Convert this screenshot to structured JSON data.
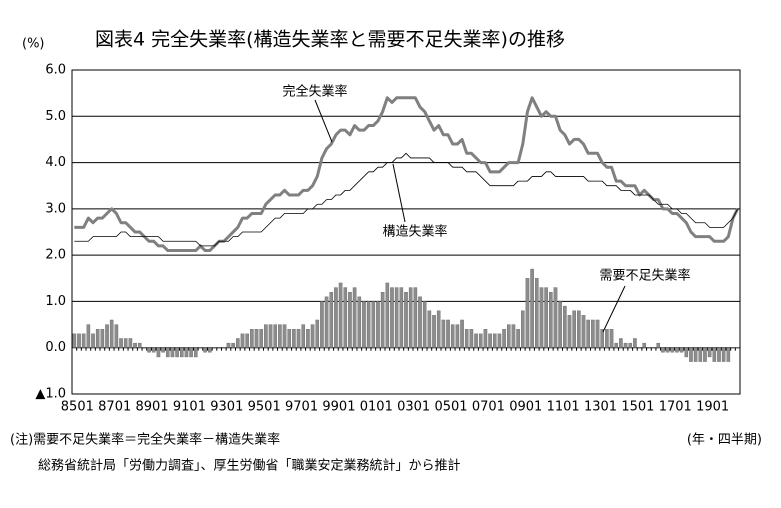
{
  "chart_data": {
    "type": "combo",
    "title": "図表4 完全失業率(構造失業率と需要不足失業率)の推移",
    "y_unit": "(%)",
    "x_unit": "(年・四半期)",
    "notes": [
      "(注)需要不足失業率＝完全失業率－構造失業率",
      "総務省統計局「労働力調査」、厚生労働省「職業安定業務統計」から推計"
    ],
    "ylim": [
      -1,
      6
    ],
    "yticks": [
      {
        "value": 6,
        "label": "6.0"
      },
      {
        "value": 5,
        "label": "5.0"
      },
      {
        "value": 4,
        "label": "4.0"
      },
      {
        "value": 3,
        "label": "3.0"
      },
      {
        "value": 2,
        "label": "2.0"
      },
      {
        "value": 1,
        "label": "1.0"
      },
      {
        "value": 0,
        "label": "0.0"
      },
      {
        "value": -1,
        "label": "▲1.0"
      }
    ],
    "grid": true,
    "categories": [
      "8501",
      null,
      null,
      null,
      null,
      null,
      null,
      null,
      "8701",
      null,
      null,
      null,
      null,
      null,
      null,
      null,
      "8901",
      null,
      null,
      null,
      null,
      null,
      null,
      null,
      "9101",
      null,
      null,
      null,
      null,
      null,
      null,
      null,
      "9301",
      null,
      null,
      null,
      null,
      null,
      null,
      null,
      "9501",
      null,
      null,
      null,
      null,
      null,
      null,
      null,
      "9701",
      null,
      null,
      null,
      null,
      null,
      null,
      null,
      "9901",
      null,
      null,
      null,
      null,
      null,
      null,
      null,
      "0101",
      null,
      null,
      null,
      null,
      null,
      null,
      null,
      "0301",
      null,
      null,
      null,
      null,
      null,
      null,
      null,
      "0501",
      null,
      null,
      null,
      null,
      null,
      null,
      null,
      "0701",
      null,
      null,
      null,
      null,
      null,
      null,
      null,
      "0901",
      null,
      null,
      null,
      null,
      null,
      null,
      null,
      "1101",
      null,
      null,
      null,
      null,
      null,
      null,
      null,
      "1301",
      null,
      null,
      null,
      null,
      null,
      null,
      null,
      "1501",
      null,
      null,
      null,
      null,
      null,
      null,
      null,
      "1701",
      null,
      null,
      null,
      null,
      null,
      null,
      null,
      "1901",
      null,
      null,
      null,
      null,
      null,
      null
    ],
    "series": [
      {
        "name": "完全失業率",
        "type": "line",
        "color": "#808080",
        "values": [
          2.6,
          2.6,
          2.6,
          2.8,
          2.7,
          2.8,
          2.8,
          2.9,
          3.0,
          2.9,
          2.7,
          2.7,
          2.6,
          2.5,
          2.5,
          2.4,
          2.3,
          2.3,
          2.2,
          2.2,
          2.1,
          2.1,
          2.1,
          2.1,
          2.1,
          2.1,
          2.1,
          2.2,
          2.1,
          2.1,
          2.2,
          2.3,
          2.3,
          2.4,
          2.5,
          2.6,
          2.8,
          2.8,
          2.9,
          2.9,
          2.9,
          3.1,
          3.2,
          3.3,
          3.3,
          3.4,
          3.3,
          3.3,
          3.3,
          3.4,
          3.4,
          3.5,
          3.7,
          4.1,
          4.3,
          4.4,
          4.6,
          4.7,
          4.7,
          4.6,
          4.8,
          4.7,
          4.7,
          4.8,
          4.8,
          4.9,
          5.1,
          5.4,
          5.3,
          5.4,
          5.4,
          5.4,
          5.4,
          5.4,
          5.2,
          5.1,
          4.9,
          4.7,
          4.8,
          4.6,
          4.6,
          4.4,
          4.4,
          4.5,
          4.2,
          4.2,
          4.1,
          4.0,
          4.0,
          3.8,
          3.8,
          3.8,
          3.9,
          4.0,
          4.0,
          4.0,
          4.4,
          5.1,
          5.4,
          5.2,
          5.0,
          5.1,
          5.0,
          5.0,
          4.7,
          4.6,
          4.4,
          4.5,
          4.5,
          4.4,
          4.2,
          4.2,
          4.2,
          4.0,
          3.9,
          3.9,
          3.6,
          3.6,
          3.5,
          3.5,
          3.5,
          3.3,
          3.4,
          3.3,
          3.2,
          3.2,
          3.0,
          3.0,
          2.9,
          2.9,
          2.8,
          2.7,
          2.5,
          2.4,
          2.4,
          2.4,
          2.4,
          2.3,
          2.3,
          2.3,
          2.4,
          2.8,
          3.0
        ]
      },
      {
        "name": "構造失業率",
        "type": "line",
        "color": "#000000",
        "values": [
          2.3,
          2.3,
          2.3,
          2.3,
          2.4,
          2.4,
          2.4,
          2.4,
          2.4,
          2.4,
          2.5,
          2.5,
          2.4,
          2.4,
          2.4,
          2.4,
          2.4,
          2.4,
          2.4,
          2.3,
          2.3,
          2.3,
          2.3,
          2.3,
          2.3,
          2.3,
          2.3,
          2.2,
          2.2,
          2.2,
          2.2,
          2.3,
          2.3,
          2.3,
          2.4,
          2.4,
          2.5,
          2.5,
          2.5,
          2.5,
          2.5,
          2.6,
          2.7,
          2.8,
          2.8,
          2.9,
          2.9,
          2.9,
          2.9,
          2.9,
          3.0,
          3.0,
          3.1,
          3.1,
          3.2,
          3.2,
          3.3,
          3.3,
          3.4,
          3.4,
          3.5,
          3.6,
          3.7,
          3.8,
          3.8,
          3.9,
          3.9,
          4.0,
          4.0,
          4.1,
          4.1,
          4.2,
          4.1,
          4.1,
          4.1,
          4.1,
          4.1,
          4.0,
          4.0,
          4.0,
          4.0,
          3.9,
          3.9,
          3.9,
          3.8,
          3.8,
          3.8,
          3.7,
          3.6,
          3.5,
          3.5,
          3.5,
          3.5,
          3.5,
          3.5,
          3.6,
          3.6,
          3.6,
          3.7,
          3.7,
          3.7,
          3.8,
          3.8,
          3.7,
          3.7,
          3.7,
          3.7,
          3.7,
          3.7,
          3.7,
          3.6,
          3.6,
          3.6,
          3.6,
          3.5,
          3.5,
          3.5,
          3.4,
          3.4,
          3.4,
          3.3,
          3.3,
          3.3,
          3.3,
          3.2,
          3.1,
          3.1,
          3.1,
          3.0,
          3.0,
          2.9,
          2.9,
          2.8,
          2.7,
          2.7,
          2.7,
          2.6,
          2.6,
          2.6,
          2.6,
          2.7,
          2.8,
          3.0
        ]
      },
      {
        "name": "需要不足失業率",
        "type": "bar",
        "color": "#8c8c8c",
        "values": [
          0.3,
          0.3,
          0.3,
          0.5,
          0.3,
          0.4,
          0.4,
          0.5,
          0.6,
          0.5,
          0.2,
          0.2,
          0.2,
          0.1,
          0.1,
          0.0,
          -0.1,
          -0.1,
          -0.2,
          -0.1,
          -0.2,
          -0.2,
          -0.2,
          -0.2,
          -0.2,
          -0.2,
          -0.2,
          0.0,
          -0.1,
          -0.1,
          0.0,
          0.0,
          0.0,
          0.1,
          0.1,
          0.2,
          0.3,
          0.3,
          0.4,
          0.4,
          0.4,
          0.5,
          0.5,
          0.5,
          0.5,
          0.5,
          0.4,
          0.4,
          0.4,
          0.5,
          0.4,
          0.5,
          0.6,
          1.0,
          1.1,
          1.2,
          1.3,
          1.4,
          1.3,
          1.2,
          1.3,
          1.1,
          1.0,
          1.0,
          1.0,
          1.0,
          1.2,
          1.4,
          1.3,
          1.3,
          1.3,
          1.2,
          1.3,
          1.3,
          1.1,
          1.0,
          0.8,
          0.7,
          0.8,
          0.6,
          0.6,
          0.5,
          0.5,
          0.6,
          0.4,
          0.4,
          0.3,
          0.3,
          0.4,
          0.3,
          0.3,
          0.3,
          0.4,
          0.5,
          0.5,
          0.4,
          0.8,
          1.5,
          1.7,
          1.5,
          1.3,
          1.3,
          1.2,
          1.3,
          1.0,
          0.9,
          0.7,
          0.8,
          0.8,
          0.7,
          0.6,
          0.6,
          0.6,
          0.4,
          0.4,
          0.4,
          0.1,
          0.2,
          0.1,
          0.1,
          0.2,
          0.0,
          0.1,
          0.0,
          0.0,
          0.1,
          -0.1,
          -0.1,
          -0.1,
          -0.1,
          -0.1,
          -0.2,
          -0.3,
          -0.3,
          -0.3,
          -0.3,
          -0.2,
          -0.3,
          -0.3,
          -0.3,
          -0.3,
          0.0,
          0.0
        ]
      }
    ]
  }
}
